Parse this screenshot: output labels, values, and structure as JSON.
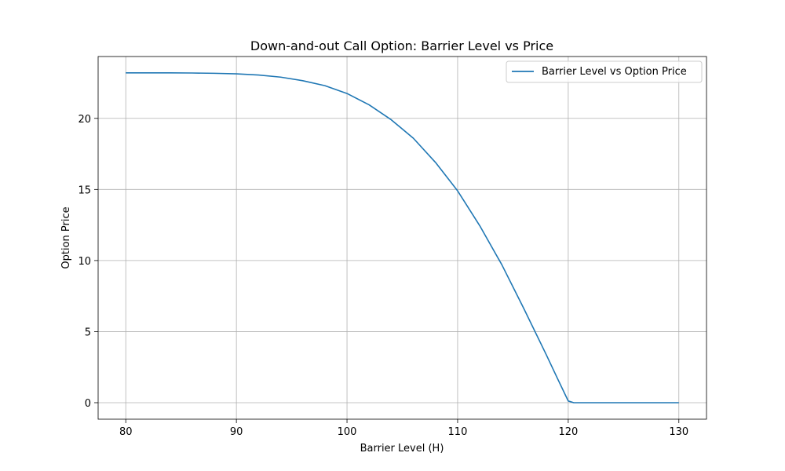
{
  "chart_data": {
    "type": "line",
    "title": "Down-and-out Call Option: Barrier Level vs Price",
    "xlabel": "Barrier Level (H)",
    "ylabel": "Option Price",
    "xlim": [
      77.5,
      132.5
    ],
    "ylim": [
      -1.16,
      24.35
    ],
    "xticks": [
      80,
      90,
      100,
      110,
      120,
      130
    ],
    "yticks": [
      0,
      5,
      10,
      15,
      20
    ],
    "grid": true,
    "legend": "top-right",
    "series": [
      {
        "name": "Barrier Level vs Option Price",
        "color": "#1f77b4",
        "x": [
          80,
          82,
          84,
          86,
          88,
          90,
          92,
          94,
          96,
          98,
          100,
          102,
          104,
          106,
          108,
          110,
          112,
          114,
          116,
          118,
          119,
          120,
          120.5,
          122,
          124,
          126,
          128,
          130
        ],
        "y": [
          23.2,
          23.2,
          23.2,
          23.19,
          23.17,
          23.13,
          23.05,
          22.9,
          22.65,
          22.3,
          21.75,
          20.95,
          19.9,
          18.6,
          16.9,
          14.9,
          12.45,
          9.7,
          6.6,
          3.4,
          1.75,
          0.12,
          0.0,
          0.0,
          0.0,
          0.0,
          0.0,
          0.0
        ]
      }
    ]
  }
}
